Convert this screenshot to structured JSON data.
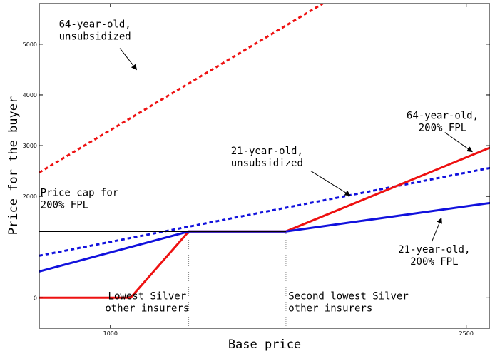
{
  "chart_data": {
    "type": "line",
    "xlabel": "Base price",
    "ylabel": "Price for the buyer",
    "xlim": [
      700,
      2600
    ],
    "ylim": [
      -600,
      5800
    ],
    "x_ticks": [
      {
        "value": 1000,
        "label": "1000"
      },
      {
        "value": 2500,
        "label": "2500"
      }
    ],
    "y_ticks": [
      {
        "value": 0,
        "label": "0"
      },
      {
        "value": 2000,
        "label": "2000"
      },
      {
        "value": 3000,
        "label": "3000"
      },
      {
        "value": 4000,
        "label": "4000"
      },
      {
        "value": 5000,
        "label": "5000"
      }
    ],
    "grid": false,
    "series": [
      {
        "key": "old_unsub",
        "color": "#ee1111",
        "dashed": true,
        "x": [
          700,
          1895
        ],
        "y": [
          2470,
          5800
        ]
      },
      {
        "key": "young_unsub",
        "color": "#1111dd",
        "dashed": true,
        "x": [
          700,
          2600
        ],
        "y": [
          830,
          2560
        ]
      },
      {
        "key": "old_fpl",
        "color": "#ee1111",
        "dashed": false,
        "x": [
          700,
          1085,
          1330,
          1740,
          2600
        ],
        "y": [
          0,
          0,
          1310,
          1310,
          2960
        ]
      },
      {
        "key": "young_fpl",
        "color": "#1111dd",
        "dashed": false,
        "x": [
          700,
          1330,
          1740,
          2600
        ],
        "y": [
          520,
          1310,
          1310,
          1870
        ]
      },
      {
        "key": "cap",
        "color": "#000000",
        "dashed": false,
        "x": [
          700,
          1740
        ],
        "y": [
          1310,
          1310
        ]
      }
    ],
    "vlines": [
      {
        "x": 1330,
        "y": [
          -600,
          1310
        ]
      },
      {
        "x": 1740,
        "y": [
          -600,
          1310
        ]
      }
    ],
    "annotations": [
      {
        "lines": [
          "64-year-old,",
          "unsubsidized"
        ],
        "x": 935,
        "y": 5330,
        "anchor": "middle",
        "arrow": {
          "from": [
            1040,
            4920
          ],
          "to": [
            1110,
            4500
          ]
        }
      },
      {
        "lines": [
          "64-year-old,",
          "200% FPL"
        ],
        "x": 2400,
        "y": 3530,
        "anchor": "middle",
        "arrow": {
          "from": [
            2410,
            3260
          ],
          "to": [
            2525,
            2880
          ]
        }
      },
      {
        "lines": [
          "21-year-old,",
          "unsubsidized"
        ],
        "x": 1660,
        "y": 2830,
        "anchor": "middle",
        "arrow": {
          "from": [
            1845,
            2500
          ],
          "to": [
            2010,
            2020
          ]
        }
      },
      {
        "lines": [
          "Price cap for",
          "200% FPL"
        ],
        "x": 705,
        "y": 2010,
        "anchor": "start",
        "arrow": null
      },
      {
        "lines": [
          "21-year-old,",
          "200% FPL"
        ],
        "x": 2365,
        "y": 890,
        "anchor": "middle",
        "arrow": {
          "from": [
            2355,
            1110
          ],
          "to": [
            2395,
            1570
          ]
        }
      },
      {
        "lines": [
          "Lowest Silver",
          "other insurers"
        ],
        "x": 1155,
        "y": -30,
        "anchor": "middle",
        "arrow": null
      },
      {
        "lines": [
          "Second lowest Silver",
          "other insurers"
        ],
        "x": 1750,
        "y": -30,
        "anchor": "start",
        "arrow": null
      }
    ]
  }
}
